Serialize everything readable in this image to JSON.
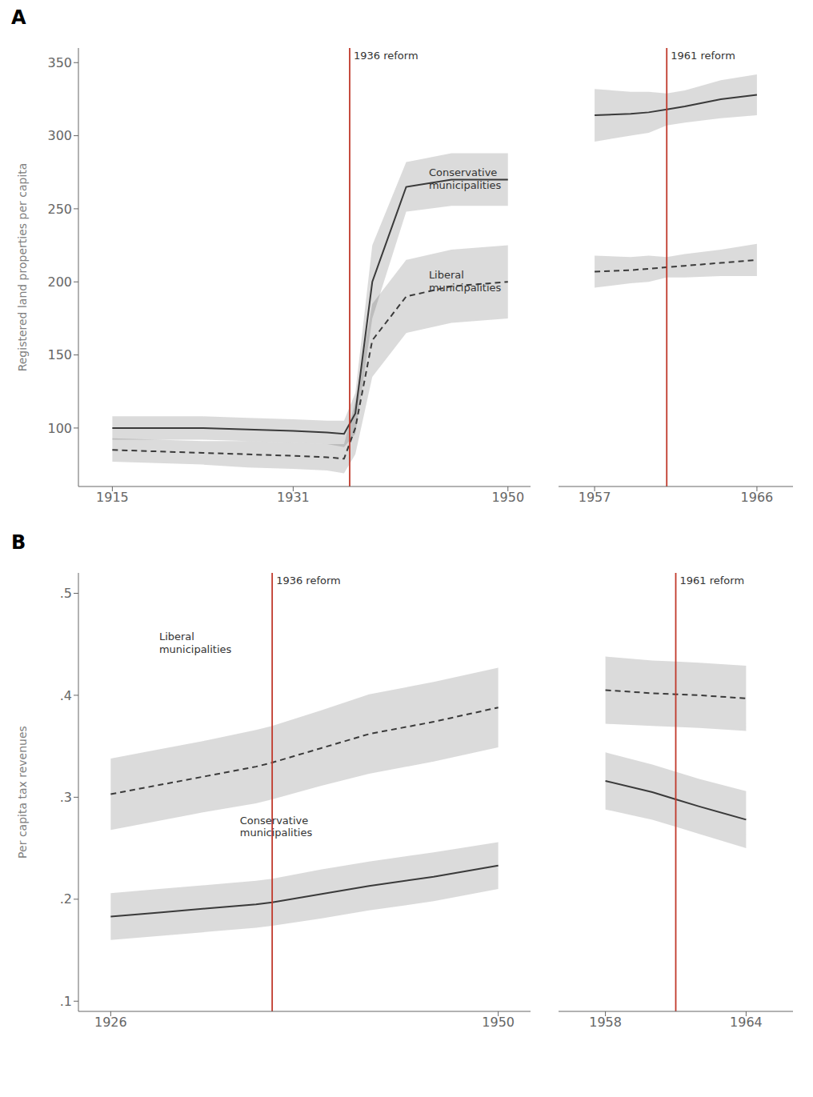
{
  "chart_data": [
    {
      "type": "line",
      "title": "A",
      "ylabel": "Registered land properties per capita",
      "grid": false,
      "x": [
        1915,
        1919,
        1923,
        1927,
        1931,
        1934,
        1935.5,
        1936.5,
        1938,
        1941,
        1945,
        1950
      ],
      "xlim": [
        1912,
        1952
      ],
      "xticks": [
        1915,
        1931,
        1950
      ],
      "ylim": [
        60,
        360
      ],
      "yticks": [
        100,
        150,
        200,
        250,
        300,
        350
      ],
      "series": [
        {
          "color": "#3a3a3a",
          "line_style": "solid",
          "values": [
            100,
            100,
            100,
            99,
            98,
            97,
            96,
            110,
            200,
            265,
            270,
            270
          ],
          "lower": [
            92,
            92,
            92,
            91,
            90,
            89,
            87,
            96,
            175,
            248,
            252,
            252
          ],
          "upper": [
            108,
            108,
            108,
            107,
            106,
            105,
            105,
            124,
            225,
            282,
            288,
            288
          ]
        },
        {
          "color": "#3a3a3a",
          "line_style": "dashed",
          "values": [
            85,
            84,
            83,
            82,
            81,
            80,
            79,
            100,
            160,
            190,
            197,
            200
          ],
          "lower": [
            77,
            76,
            75,
            73,
            72,
            71,
            69,
            82,
            135,
            165,
            172,
            175
          ],
          "upper": [
            93,
            92,
            91,
            91,
            90,
            89,
            89,
            118,
            185,
            215,
            222,
            225
          ]
        }
      ],
      "reference_lines": [
        {
          "x": 1936,
          "text": "1936 reform",
          "color": "#c0392b"
        }
      ],
      "annotations": [
        {
          "text": "Conservative\nmunicipalities",
          "x": 1943,
          "y": 280
        },
        {
          "text": "Liberal\nmunicipalities",
          "x": 1943,
          "y": 210
        }
      ]
    },
    {
      "type": "line",
      "tick_labels": "x",
      "grid": false,
      "x": [
        1957,
        1959,
        1960,
        1961,
        1962,
        1964,
        1966
      ],
      "xlim": [
        1955,
        1968
      ],
      "xticks": [
        1957,
        1966
      ],
      "ylim": [
        60,
        360
      ],
      "yticks": [
        100,
        150,
        200,
        250,
        300,
        350
      ],
      "series": [
        {
          "color": "#3a3a3a",
          "line_style": "solid",
          "values": [
            314,
            315,
            316,
            318,
            320,
            325,
            328
          ],
          "lower": [
            296,
            300,
            302,
            307,
            309,
            312,
            314
          ],
          "upper": [
            332,
            330,
            330,
            329,
            331,
            338,
            342
          ]
        },
        {
          "color": "#3a3a3a",
          "line_style": "dashed",
          "values": [
            207,
            208,
            209,
            210,
            211,
            213,
            215
          ],
          "lower": [
            196,
            199,
            200,
            203,
            203,
            204,
            204
          ],
          "upper": [
            218,
            217,
            218,
            217,
            219,
            222,
            226
          ]
        }
      ],
      "reference_lines": [
        {
          "x": 1961,
          "text": "1961 reform",
          "color": "#c0392b"
        }
      ],
      "annotations": []
    },
    {
      "type": "line",
      "title": "B",
      "ylabel": "Per capita tax revenues",
      "grid": false,
      "x": [
        1926,
        1929,
        1932,
        1935,
        1936,
        1939,
        1942,
        1946,
        1950
      ],
      "xlim": [
        1924,
        1952
      ],
      "xticks": [
        1926,
        1950
      ],
      "ylim": [
        0.09,
        0.52
      ],
      "yticks": [
        {
          "value": 0.1,
          "label": ".1"
        },
        {
          "value": 0.2,
          "label": ".2"
        },
        {
          "value": 0.3,
          "label": ".3"
        },
        {
          "value": 0.4,
          "label": ".4"
        },
        {
          "value": 0.5,
          "label": ".5"
        }
      ],
      "series": [
        {
          "color": "#3a3a3a",
          "line_style": "solid",
          "values": [
            0.183,
            0.187,
            0.191,
            0.195,
            0.197,
            0.205,
            0.213,
            0.222,
            0.233
          ],
          "lower": [
            0.16,
            0.164,
            0.168,
            0.172,
            0.174,
            0.181,
            0.189,
            0.198,
            0.21
          ],
          "upper": [
            0.206,
            0.21,
            0.214,
            0.218,
            0.22,
            0.229,
            0.237,
            0.246,
            0.256
          ]
        },
        {
          "color": "#3a3a3a",
          "line_style": "dashed",
          "values": [
            0.303,
            0.312,
            0.321,
            0.33,
            0.334,
            0.348,
            0.362,
            0.374,
            0.388
          ],
          "lower": [
            0.268,
            0.277,
            0.286,
            0.294,
            0.298,
            0.311,
            0.323,
            0.335,
            0.349
          ],
          "upper": [
            0.338,
            0.347,
            0.356,
            0.366,
            0.37,
            0.385,
            0.401,
            0.413,
            0.427
          ]
        }
      ],
      "reference_lines": [
        {
          "x": 1936,
          "text": "1936 reform",
          "color": "#c0392b"
        }
      ],
      "annotations": [
        {
          "text": "Liberal\nmunicipalities",
          "x": 1929,
          "y": 0.465
        },
        {
          "text": "Conservative\nmunicipalities",
          "x": 1934,
          "y": 0.285
        }
      ]
    },
    {
      "type": "line",
      "tick_labels": "x",
      "grid": false,
      "x": [
        1958,
        1960,
        1961,
        1962,
        1964
      ],
      "xlim": [
        1956,
        1966
      ],
      "xticks": [
        1958,
        1964
      ],
      "ylim": [
        0.09,
        0.52
      ],
      "yticks": [
        {
          "value": 0.1,
          "label": ".1"
        },
        {
          "value": 0.2,
          "label": ".2"
        },
        {
          "value": 0.3,
          "label": ".3"
        },
        {
          "value": 0.4,
          "label": ".4"
        },
        {
          "value": 0.5,
          "label": ".5"
        }
      ],
      "series": [
        {
          "color": "#3a3a3a",
          "line_style": "solid",
          "values": [
            0.316,
            0.305,
            0.298,
            0.291,
            0.278
          ],
          "lower": [
            0.288,
            0.278,
            0.271,
            0.264,
            0.25
          ],
          "upper": [
            0.344,
            0.332,
            0.325,
            0.318,
            0.306
          ]
        },
        {
          "color": "#3a3a3a",
          "line_style": "dashed",
          "values": [
            0.405,
            0.402,
            0.401,
            0.4,
            0.397
          ],
          "lower": [
            0.372,
            0.37,
            0.369,
            0.368,
            0.365
          ],
          "upper": [
            0.438,
            0.434,
            0.433,
            0.432,
            0.429
          ]
        }
      ],
      "reference_lines": [
        {
          "x": 1961,
          "text": "1961 reform",
          "color": "#c0392b"
        }
      ],
      "annotations": []
    }
  ]
}
